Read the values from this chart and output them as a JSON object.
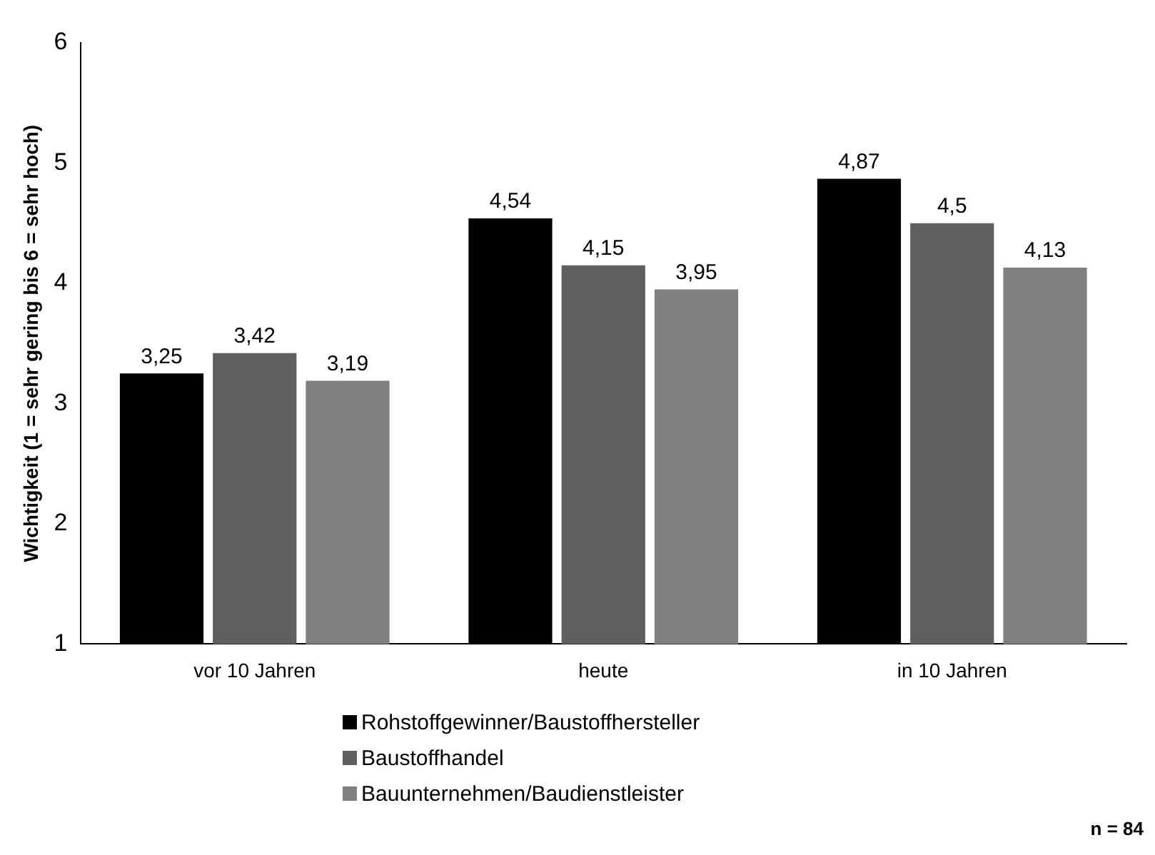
{
  "chart_data": {
    "type": "bar",
    "ylabel": "Wichtigkeit (1 = sehr gering bis 6 = sehr hoch)",
    "categories": [
      "vor 10 Jahren",
      "heute",
      "in 10 Jahren"
    ],
    "series": [
      {
        "name": "Rohstoffgewinner/Baustoffhersteller",
        "color": "#000000",
        "values": [
          3.25,
          4.54,
          4.87
        ],
        "value_labels": [
          "3,25",
          "4,54",
          "4,87"
        ]
      },
      {
        "name": "Baustoffhandel",
        "color": "#606060",
        "values": [
          3.42,
          4.15,
          4.5
        ],
        "value_labels": [
          "3,42",
          "4,15",
          "4,5"
        ]
      },
      {
        "name": "Bauunternehmen/Baudienstleister",
        "color": "#808080",
        "values": [
          3.19,
          3.95,
          4.13
        ],
        "value_labels": [
          "3,19",
          "3,95",
          "4,13"
        ]
      }
    ],
    "ylim": [
      1,
      6
    ],
    "yticks": [
      1,
      2,
      3,
      4,
      5,
      6
    ],
    "grid": false,
    "legend": "bottom",
    "annotations": [
      "n = 84"
    ]
  }
}
